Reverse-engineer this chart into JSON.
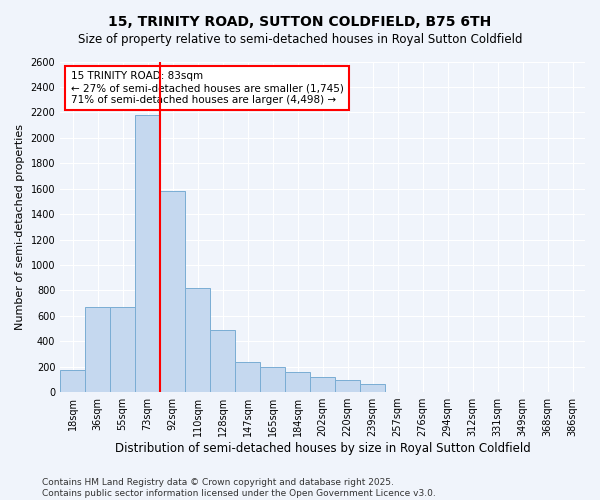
{
  "title": "15, TRINITY ROAD, SUTTON COLDFIELD, B75 6TH",
  "subtitle": "Size of property relative to semi-detached houses in Royal Sutton Coldfield",
  "xlabel": "Distribution of semi-detached houses by size in Royal Sutton Coldfield",
  "ylabel": "Number of semi-detached properties",
  "categories": [
    "18sqm",
    "36sqm",
    "55sqm",
    "73sqm",
    "92sqm",
    "110sqm",
    "128sqm",
    "147sqm",
    "165sqm",
    "184sqm",
    "202sqm",
    "220sqm",
    "239sqm",
    "257sqm",
    "276sqm",
    "294sqm",
    "312sqm",
    "331sqm",
    "349sqm",
    "368sqm",
    "386sqm"
  ],
  "values": [
    175,
    670,
    670,
    2180,
    1580,
    820,
    490,
    240,
    200,
    155,
    120,
    95,
    60,
    0,
    0,
    0,
    0,
    0,
    0,
    0,
    0
  ],
  "bar_color": "#c5d8ef",
  "bar_edge_color": "#7aadd4",
  "red_line_index": 3,
  "annotation_title": "15 TRINITY ROAD: 83sqm",
  "annotation_line1": "← 27% of semi-detached houses are smaller (1,745)",
  "annotation_line2": "71% of semi-detached houses are larger (4,498) →",
  "ylim": [
    0,
    2600
  ],
  "yticks": [
    0,
    200,
    400,
    600,
    800,
    1000,
    1200,
    1400,
    1600,
    1800,
    2000,
    2200,
    2400,
    2600
  ],
  "footnote1": "Contains HM Land Registry data © Crown copyright and database right 2025.",
  "footnote2": "Contains public sector information licensed under the Open Government Licence v3.0.",
  "bg_color": "#f0f4fb",
  "plot_bg_color": "#f0f4fb",
  "grid_color": "#ffffff",
  "title_fontsize": 10,
  "subtitle_fontsize": 8.5,
  "ylabel_fontsize": 8,
  "xlabel_fontsize": 8.5,
  "tick_fontsize": 7,
  "annot_fontsize": 7.5,
  "footnote_fontsize": 6.5
}
